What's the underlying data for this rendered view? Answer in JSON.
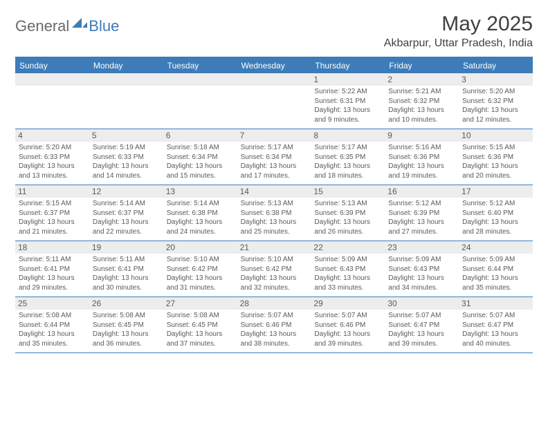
{
  "logo": {
    "word1": "General",
    "word2": "Blue",
    "icon_color": "#3d7cb8"
  },
  "title": "May 2025",
  "location": "Akbarpur, Uttar Pradesh, India",
  "colors": {
    "header_bg": "#3d7cb8",
    "header_text": "#ffffff",
    "daynum_bg": "#ededed",
    "text": "#5a5a5a",
    "title_text": "#404040"
  },
  "fonts": {
    "title_size": 30,
    "location_size": 16,
    "dow_size": 12,
    "day_size": 12,
    "detail_size": 10
  },
  "days_of_week": [
    "Sunday",
    "Monday",
    "Tuesday",
    "Wednesday",
    "Thursday",
    "Friday",
    "Saturday"
  ],
  "weeks": [
    [
      {
        "day": "",
        "sunrise": "",
        "sunset": "",
        "daylight": ""
      },
      {
        "day": "",
        "sunrise": "",
        "sunset": "",
        "daylight": ""
      },
      {
        "day": "",
        "sunrise": "",
        "sunset": "",
        "daylight": ""
      },
      {
        "day": "",
        "sunrise": "",
        "sunset": "",
        "daylight": ""
      },
      {
        "day": "1",
        "sunrise": "Sunrise: 5:22 AM",
        "sunset": "Sunset: 6:31 PM",
        "daylight": "Daylight: 13 hours and 9 minutes."
      },
      {
        "day": "2",
        "sunrise": "Sunrise: 5:21 AM",
        "sunset": "Sunset: 6:32 PM",
        "daylight": "Daylight: 13 hours and 10 minutes."
      },
      {
        "day": "3",
        "sunrise": "Sunrise: 5:20 AM",
        "sunset": "Sunset: 6:32 PM",
        "daylight": "Daylight: 13 hours and 12 minutes."
      }
    ],
    [
      {
        "day": "4",
        "sunrise": "Sunrise: 5:20 AM",
        "sunset": "Sunset: 6:33 PM",
        "daylight": "Daylight: 13 hours and 13 minutes."
      },
      {
        "day": "5",
        "sunrise": "Sunrise: 5:19 AM",
        "sunset": "Sunset: 6:33 PM",
        "daylight": "Daylight: 13 hours and 14 minutes."
      },
      {
        "day": "6",
        "sunrise": "Sunrise: 5:18 AM",
        "sunset": "Sunset: 6:34 PM",
        "daylight": "Daylight: 13 hours and 15 minutes."
      },
      {
        "day": "7",
        "sunrise": "Sunrise: 5:17 AM",
        "sunset": "Sunset: 6:34 PM",
        "daylight": "Daylight: 13 hours and 17 minutes."
      },
      {
        "day": "8",
        "sunrise": "Sunrise: 5:17 AM",
        "sunset": "Sunset: 6:35 PM",
        "daylight": "Daylight: 13 hours and 18 minutes."
      },
      {
        "day": "9",
        "sunrise": "Sunrise: 5:16 AM",
        "sunset": "Sunset: 6:36 PM",
        "daylight": "Daylight: 13 hours and 19 minutes."
      },
      {
        "day": "10",
        "sunrise": "Sunrise: 5:15 AM",
        "sunset": "Sunset: 6:36 PM",
        "daylight": "Daylight: 13 hours and 20 minutes."
      }
    ],
    [
      {
        "day": "11",
        "sunrise": "Sunrise: 5:15 AM",
        "sunset": "Sunset: 6:37 PM",
        "daylight": "Daylight: 13 hours and 21 minutes."
      },
      {
        "day": "12",
        "sunrise": "Sunrise: 5:14 AM",
        "sunset": "Sunset: 6:37 PM",
        "daylight": "Daylight: 13 hours and 22 minutes."
      },
      {
        "day": "13",
        "sunrise": "Sunrise: 5:14 AM",
        "sunset": "Sunset: 6:38 PM",
        "daylight": "Daylight: 13 hours and 24 minutes."
      },
      {
        "day": "14",
        "sunrise": "Sunrise: 5:13 AM",
        "sunset": "Sunset: 6:38 PM",
        "daylight": "Daylight: 13 hours and 25 minutes."
      },
      {
        "day": "15",
        "sunrise": "Sunrise: 5:13 AM",
        "sunset": "Sunset: 6:39 PM",
        "daylight": "Daylight: 13 hours and 26 minutes."
      },
      {
        "day": "16",
        "sunrise": "Sunrise: 5:12 AM",
        "sunset": "Sunset: 6:39 PM",
        "daylight": "Daylight: 13 hours and 27 minutes."
      },
      {
        "day": "17",
        "sunrise": "Sunrise: 5:12 AM",
        "sunset": "Sunset: 6:40 PM",
        "daylight": "Daylight: 13 hours and 28 minutes."
      }
    ],
    [
      {
        "day": "18",
        "sunrise": "Sunrise: 5:11 AM",
        "sunset": "Sunset: 6:41 PM",
        "daylight": "Daylight: 13 hours and 29 minutes."
      },
      {
        "day": "19",
        "sunrise": "Sunrise: 5:11 AM",
        "sunset": "Sunset: 6:41 PM",
        "daylight": "Daylight: 13 hours and 30 minutes."
      },
      {
        "day": "20",
        "sunrise": "Sunrise: 5:10 AM",
        "sunset": "Sunset: 6:42 PM",
        "daylight": "Daylight: 13 hours and 31 minutes."
      },
      {
        "day": "21",
        "sunrise": "Sunrise: 5:10 AM",
        "sunset": "Sunset: 6:42 PM",
        "daylight": "Daylight: 13 hours and 32 minutes."
      },
      {
        "day": "22",
        "sunrise": "Sunrise: 5:09 AM",
        "sunset": "Sunset: 6:43 PM",
        "daylight": "Daylight: 13 hours and 33 minutes."
      },
      {
        "day": "23",
        "sunrise": "Sunrise: 5:09 AM",
        "sunset": "Sunset: 6:43 PM",
        "daylight": "Daylight: 13 hours and 34 minutes."
      },
      {
        "day": "24",
        "sunrise": "Sunrise: 5:09 AM",
        "sunset": "Sunset: 6:44 PM",
        "daylight": "Daylight: 13 hours and 35 minutes."
      }
    ],
    [
      {
        "day": "25",
        "sunrise": "Sunrise: 5:08 AM",
        "sunset": "Sunset: 6:44 PM",
        "daylight": "Daylight: 13 hours and 35 minutes."
      },
      {
        "day": "26",
        "sunrise": "Sunrise: 5:08 AM",
        "sunset": "Sunset: 6:45 PM",
        "daylight": "Daylight: 13 hours and 36 minutes."
      },
      {
        "day": "27",
        "sunrise": "Sunrise: 5:08 AM",
        "sunset": "Sunset: 6:45 PM",
        "daylight": "Daylight: 13 hours and 37 minutes."
      },
      {
        "day": "28",
        "sunrise": "Sunrise: 5:07 AM",
        "sunset": "Sunset: 6:46 PM",
        "daylight": "Daylight: 13 hours and 38 minutes."
      },
      {
        "day": "29",
        "sunrise": "Sunrise: 5:07 AM",
        "sunset": "Sunset: 6:46 PM",
        "daylight": "Daylight: 13 hours and 39 minutes."
      },
      {
        "day": "30",
        "sunrise": "Sunrise: 5:07 AM",
        "sunset": "Sunset: 6:47 PM",
        "daylight": "Daylight: 13 hours and 39 minutes."
      },
      {
        "day": "31",
        "sunrise": "Sunrise: 5:07 AM",
        "sunset": "Sunset: 6:47 PM",
        "daylight": "Daylight: 13 hours and 40 minutes."
      }
    ]
  ]
}
